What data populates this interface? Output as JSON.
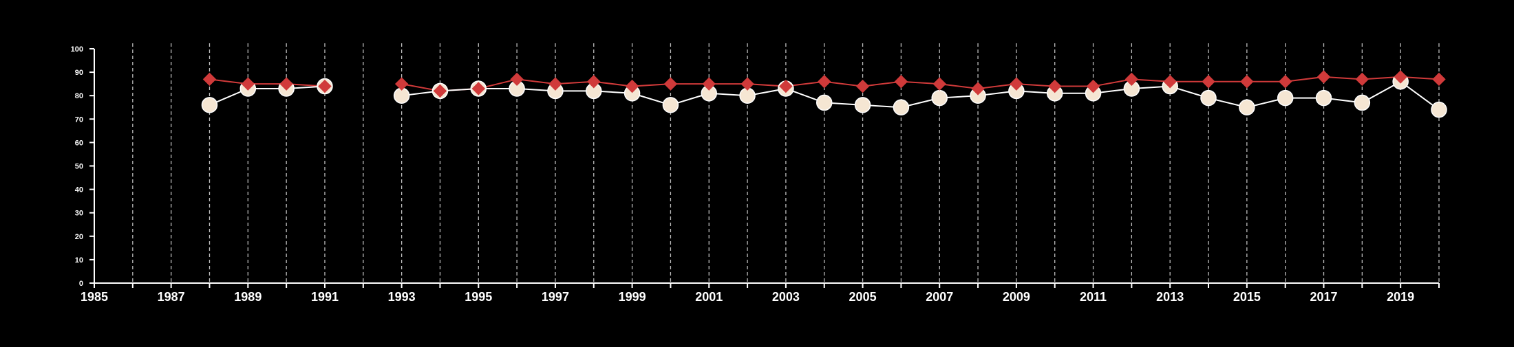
{
  "colors": {
    "background": "#000000",
    "axis": "#ffffff",
    "grid": "#bdbdbd",
    "series_red": "#d03a3a",
    "series_cream": "#f5e6d3",
    "cream_line": "#ffffff"
  },
  "chart_data": {
    "type": "line",
    "title": "",
    "xlabel": "",
    "ylabel": "",
    "xlim": [
      1985,
      2020
    ],
    "ylim": [
      0,
      100
    ],
    "x_ticks_labeled": [
      1985,
      1987,
      1989,
      1991,
      1993,
      1995,
      1997,
      1999,
      2001,
      2003,
      2005,
      2007,
      2009,
      2011,
      2013,
      2015,
      2017,
      2019
    ],
    "y_ticks": [
      0,
      10,
      20,
      30,
      40,
      50,
      60,
      70,
      80,
      90,
      100
    ],
    "grid": "vertical dashed lines at each year",
    "legend": "none",
    "series": [
      {
        "marker": "diamond",
        "color": "#d03a3a",
        "points": [
          [
            1988,
            87
          ],
          [
            1989,
            85
          ],
          [
            1990,
            85
          ],
          [
            1991,
            84
          ],
          [
            1993,
            85
          ],
          [
            1994,
            82
          ],
          [
            1995,
            83
          ],
          [
            1996,
            87
          ],
          [
            1997,
            85
          ],
          [
            1998,
            86
          ],
          [
            1999,
            84
          ],
          [
            2000,
            85
          ],
          [
            2001,
            85
          ],
          [
            2002,
            85
          ],
          [
            2003,
            84
          ],
          [
            2004,
            86
          ],
          [
            2005,
            84
          ],
          [
            2006,
            86
          ],
          [
            2007,
            85
          ],
          [
            2008,
            83
          ],
          [
            2009,
            85
          ],
          [
            2010,
            84
          ],
          [
            2011,
            84
          ],
          [
            2012,
            87
          ],
          [
            2013,
            86
          ],
          [
            2014,
            86
          ],
          [
            2015,
            86
          ],
          [
            2016,
            86
          ],
          [
            2017,
            88
          ],
          [
            2018,
            87
          ],
          [
            2019,
            88
          ],
          [
            2020,
            87
          ]
        ]
      },
      {
        "marker": "circle",
        "color": "#f5e6d3",
        "points": [
          [
            1988,
            76
          ],
          [
            1989,
            83
          ],
          [
            1990,
            83
          ],
          [
            1991,
            84
          ],
          [
            1993,
            80
          ],
          [
            1994,
            82
          ],
          [
            1995,
            83
          ],
          [
            1996,
            83
          ],
          [
            1997,
            82
          ],
          [
            1998,
            82
          ],
          [
            1999,
            81
          ],
          [
            2000,
            76
          ],
          [
            2001,
            81
          ],
          [
            2002,
            80
          ],
          [
            2003,
            83
          ],
          [
            2004,
            77
          ],
          [
            2005,
            76
          ],
          [
            2006,
            75
          ],
          [
            2007,
            79
          ],
          [
            2008,
            80
          ],
          [
            2009,
            82
          ],
          [
            2010,
            81
          ],
          [
            2011,
            81
          ],
          [
            2012,
            83
          ],
          [
            2013,
            84
          ],
          [
            2014,
            79
          ],
          [
            2015,
            75
          ],
          [
            2016,
            79
          ],
          [
            2017,
            79
          ],
          [
            2018,
            77
          ],
          [
            2019,
            86
          ],
          [
            2020,
            74
          ]
        ]
      }
    ]
  }
}
